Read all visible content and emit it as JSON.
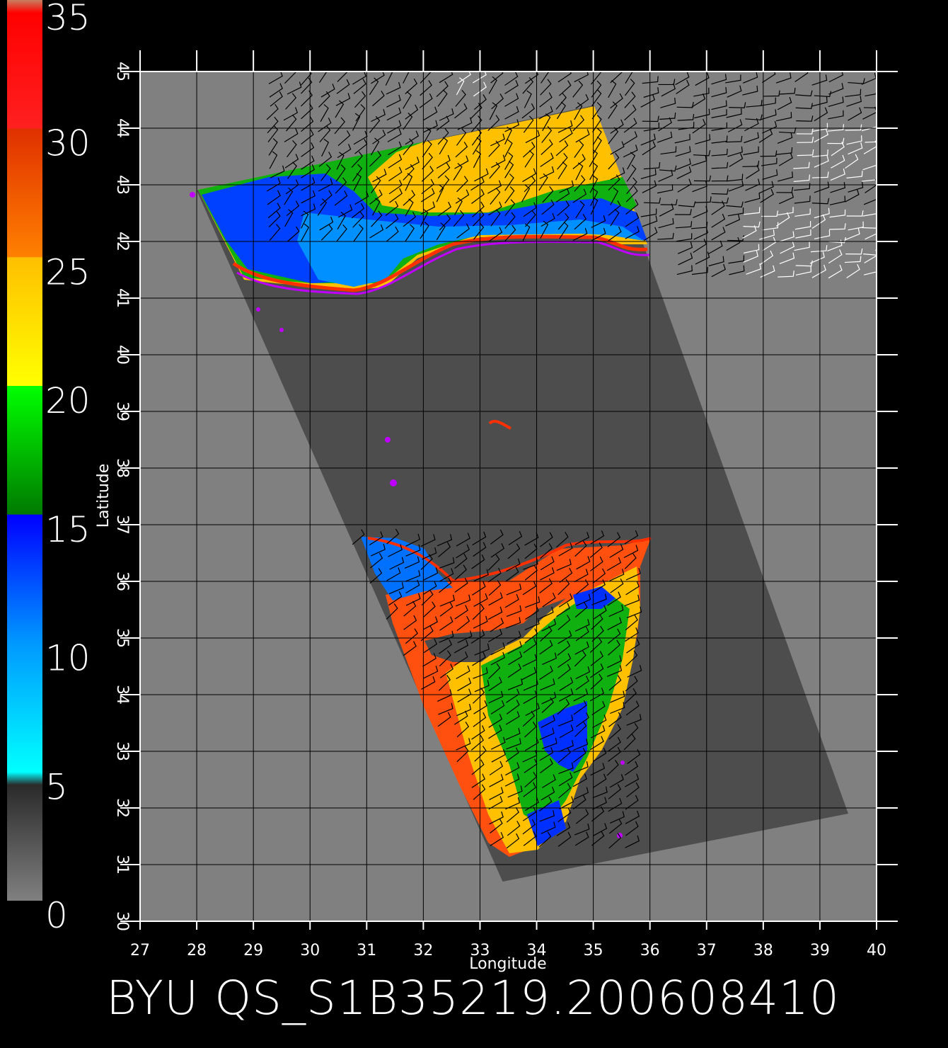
{
  "colorbar": {
    "labels": [
      "0",
      "5",
      "10",
      "15",
      "20",
      "25",
      "30",
      "35"
    ],
    "values": [
      0,
      5,
      10,
      15,
      20,
      25,
      30,
      35
    ],
    "stops": [
      {
        "value": 0,
        "color": "#808080"
      },
      {
        "value": 4.5,
        "color": "#2a2a2a"
      },
      {
        "value": 5,
        "color": "#00ffff"
      },
      {
        "value": 10,
        "color": "#0099ff"
      },
      {
        "value": 15,
        "color": "#0000ff"
      },
      {
        "value": 15.01,
        "color": "#007a00"
      },
      {
        "value": 20,
        "color": "#00ff00"
      },
      {
        "value": 20.01,
        "color": "#ffff00"
      },
      {
        "value": 25,
        "color": "#ffbf00"
      },
      {
        "value": 25.01,
        "color": "#ff8000"
      },
      {
        "value": 30,
        "color": "#e03000"
      },
      {
        "value": 30.01,
        "color": "#ff2020"
      },
      {
        "value": 34.5,
        "color": "#ff0000"
      },
      {
        "value": 35,
        "color": "#c88060"
      }
    ]
  },
  "map": {
    "xlabel": "Longitude",
    "ylabel": "Latitude",
    "lon_range": [
      27,
      40
    ],
    "lat_range": [
      30,
      45
    ],
    "lon_ticks": [
      "27",
      "28",
      "29",
      "30",
      "31",
      "32",
      "33",
      "34",
      "35",
      "36",
      "37",
      "38",
      "39",
      "40"
    ],
    "lat_ticks": [
      "30",
      "31",
      "32",
      "33",
      "34",
      "35",
      "36",
      "37",
      "38",
      "39",
      "40",
      "41",
      "42",
      "43",
      "44",
      "45"
    ],
    "background_color": "#808080",
    "swath_color": "#4d4d4d",
    "land_color": "#4d4d4d",
    "swath_corners": [
      [
        28.0,
        42.9
      ],
      [
        35.0,
        44.4
      ],
      [
        39.5,
        31.9
      ],
      [
        33.4,
        30.7
      ]
    ]
  },
  "footer": {
    "title": "BYU  QS_S1B35219.200608410"
  }
}
